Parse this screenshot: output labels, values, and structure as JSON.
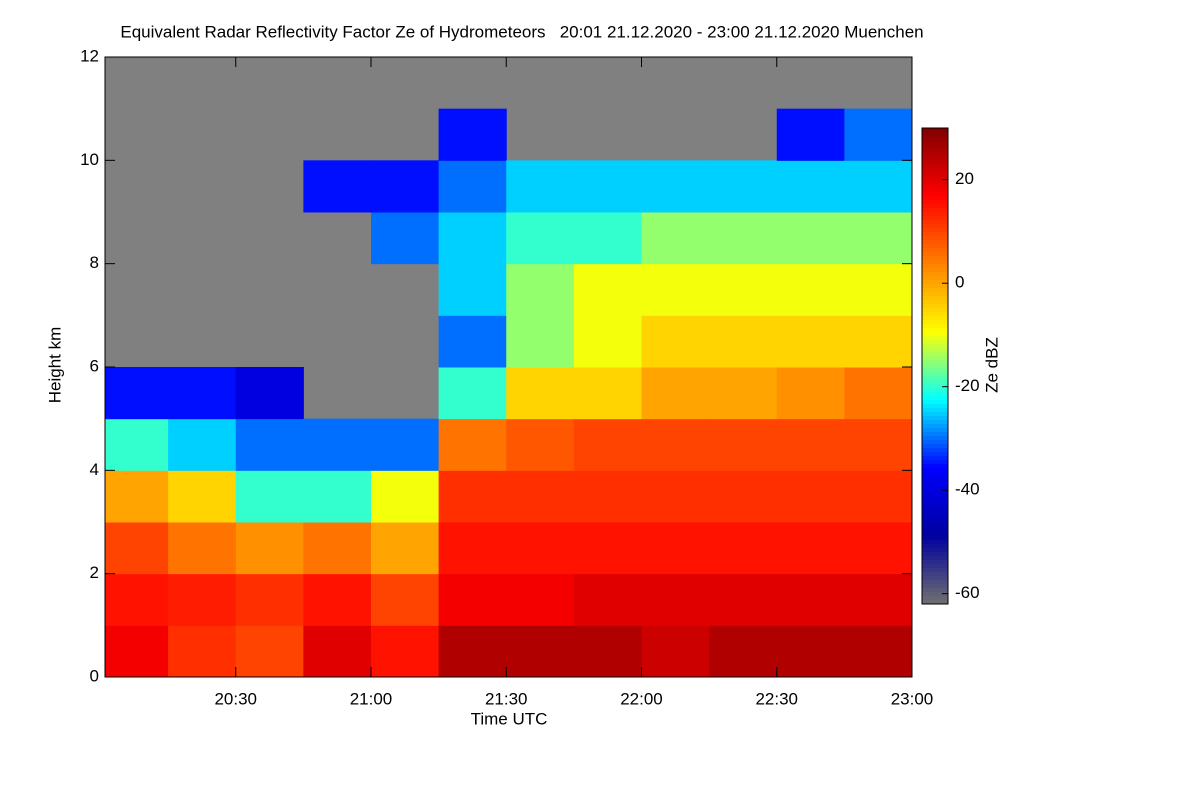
{
  "chart_data": {
    "type": "heatmap",
    "title": "Equivalent Radar Reflectivity Factor Ze of Hydrometeors   20:01 21.12.2020 - 23:00 21.12.2020 Muenchen",
    "x_label": "Time UTC",
    "y_label": "Height km",
    "colorbar_label": "Ze dBZ",
    "xbins": [
      1201,
      1215,
      1230,
      1245,
      1260,
      1275,
      1290,
      1305,
      1320,
      1335,
      1350,
      1365,
      1380
    ],
    "ybins": [
      0,
      1,
      2,
      3,
      4,
      5,
      6,
      7,
      8,
      9,
      10,
      11,
      12
    ],
    "values": [
      [
        18,
        15,
        10,
        0,
        -20,
        -35,
        null,
        null,
        null,
        null,
        null,
        null
      ],
      [
        12,
        14,
        5,
        -5,
        -25,
        -35,
        null,
        null,
        null,
        null,
        null,
        null
      ],
      [
        10,
        12,
        2,
        -20,
        -30,
        -40,
        null,
        null,
        null,
        null,
        null,
        null
      ],
      [
        20,
        15,
        5,
        -20,
        -30,
        null,
        null,
        null,
        null,
        -35,
        null,
        null
      ],
      [
        15,
        10,
        0,
        -10,
        -30,
        null,
        null,
        null,
        -30,
        -35,
        null,
        null
      ],
      [
        25,
        18,
        15,
        12,
        5,
        -20,
        -30,
        -25,
        -25,
        -30,
        -35,
        null
      ],
      [
        25,
        18,
        15,
        12,
        8,
        -5,
        -15,
        -15,
        -20,
        -25,
        null,
        null
      ],
      [
        25,
        20,
        15,
        12,
        10,
        -5,
        -10,
        -10,
        -20,
        -25,
        null,
        null
      ],
      [
        22,
        20,
        15,
        12,
        10,
        0,
        -5,
        -10,
        -15,
        -25,
        null,
        null
      ],
      [
        25,
        20,
        15,
        12,
        10,
        0,
        -5,
        -10,
        -15,
        -25,
        null,
        null
      ],
      [
        25,
        20,
        15,
        12,
        10,
        2,
        -5,
        -10,
        -15,
        -25,
        -35,
        null
      ],
      [
        25,
        20,
        15,
        12,
        10,
        5,
        -5,
        -10,
        -15,
        -25,
        -30,
        null
      ]
    ],
    "xlim": [
      1201,
      1380
    ],
    "xticks": [
      {
        "value": 1230,
        "label": "20:30"
      },
      {
        "value": 1260,
        "label": "21:00"
      },
      {
        "value": 1290,
        "label": "21:30"
      },
      {
        "value": 1320,
        "label": "22:00"
      },
      {
        "value": 1350,
        "label": "22:30"
      },
      {
        "value": 1380,
        "label": "23:00"
      }
    ],
    "ylim": [
      0,
      12
    ],
    "yticks": [
      0,
      2,
      4,
      6,
      8,
      10,
      12
    ],
    "clim": [
      -62,
      30
    ],
    "cticks": [
      -60,
      -40,
      -20,
      0,
      20
    ],
    "colormap": [
      "#707070",
      "#0000a0",
      "#0000ff",
      "#00ffff",
      "#ffff00",
      "#ff8000",
      "#ff0000",
      "#800000"
    ],
    "missing_color": "#808080"
  }
}
